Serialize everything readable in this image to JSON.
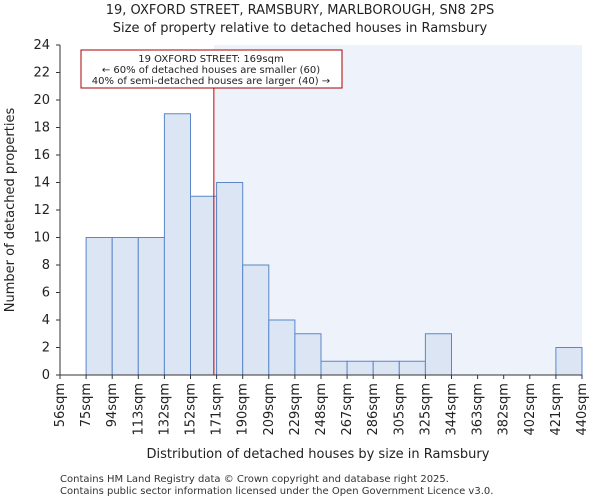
{
  "chart_data": {
    "type": "histogram",
    "title_line1": "19, OXFORD STREET, RAMSBURY, MARLBOROUGH, SN8 2PS",
    "title_line2": "Size of property relative to detached houses in Ramsbury",
    "xlabel": "Distribution of detached houses by size in Ramsbury",
    "ylabel": "Number of detached properties",
    "bin_edges": [
      56,
      75,
      94,
      113,
      132,
      152,
      171,
      190,
      209,
      229,
      248,
      267,
      286,
      305,
      325,
      344,
      363,
      382,
      402,
      421,
      440
    ],
    "tick_labels": [
      "56sqm",
      "75sqm",
      "94sqm",
      "113sqm",
      "132sqm",
      "152sqm",
      "171sqm",
      "190sqm",
      "209sqm",
      "229sqm",
      "248sqm",
      "267sqm",
      "286sqm",
      "305sqm",
      "325sqm",
      "344sqm",
      "363sqm",
      "382sqm",
      "402sqm",
      "421sqm",
      "440sqm"
    ],
    "values": [
      0,
      10,
      10,
      10,
      19,
      13,
      14,
      8,
      4,
      3,
      1,
      1,
      1,
      1,
      3,
      0,
      0,
      0,
      0,
      2
    ],
    "ylim": [
      0,
      24
    ],
    "yticks": [
      0,
      2,
      4,
      6,
      8,
      10,
      12,
      14,
      16,
      18,
      20,
      22,
      24
    ],
    "property_size": 169,
    "annotation": {
      "line1": "19 OXFORD STREET: 169sqm",
      "line2": "← 60% of detached houses are smaller (60)",
      "line3": "40% of semi-detached houses are larger (40) →"
    },
    "colors": {
      "bar_fill": "#dbe5f4",
      "bar_edge": "#5b87c8",
      "highlight_bg": "#eef2fb",
      "marker": "#cc0000",
      "annotation_border": "#aa0000"
    }
  },
  "footer": {
    "line1": "Contains HM Land Registry data © Crown copyright and database right 2025.",
    "line2": "Contains public sector information licensed under the Open Government Licence v3.0."
  }
}
